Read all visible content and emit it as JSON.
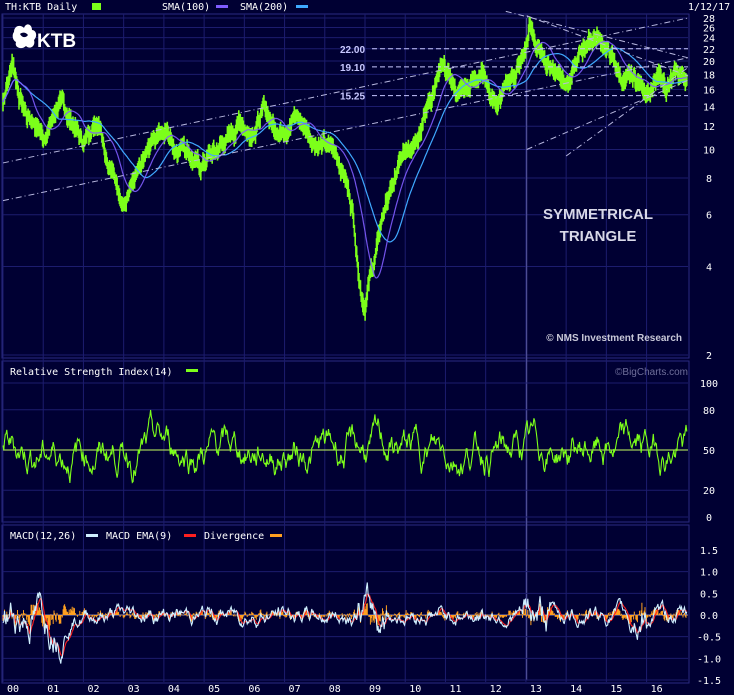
{
  "colors": {
    "background": "#000033",
    "text": "#ffffff",
    "grid": "#1c1c6e",
    "price": "#7cff1a",
    "sma100": "#7f5cff",
    "sma200": "#3fa9ff",
    "macd": "#cfefff",
    "macd_ema": "#ff2020",
    "divergence": "#ffa020",
    "trendline": "#b8b8e0",
    "level": "#c8c8ff",
    "watermark": "#6e6e9a"
  },
  "header": {
    "ticker": "TH:KTB Daily",
    "sma100": "SMA(100)",
    "sma200": "SMA(200)",
    "date": "1/12/17"
  },
  "logo_text": "KTB",
  "annotation": {
    "line1": "SYMMETRICAL",
    "line2": "TRIANGLE"
  },
  "copyright": "© NMS Investment Research",
  "levels": [
    {
      "label": "22.00",
      "value": 22
    },
    {
      "label": "19.10",
      "value": 19.1
    },
    {
      "label": "15.25",
      "value": 15.25
    }
  ],
  "rsi_title": "Relative Strength Index(14)",
  "bigcharts": "©BigCharts.com",
  "macd_legend": {
    "macd": "MACD(12,26)",
    "ema": "MACD EMA(9)",
    "divergence": "Divergence"
  },
  "chart_data": [
    {
      "type": "line",
      "name": "price",
      "scale": "log",
      "ylim": [
        2,
        28
      ],
      "xlim": [
        2000,
        2017.03
      ],
      "yticks": [
        "28",
        "26",
        "24",
        "22",
        "20",
        "18",
        "16",
        "14",
        "12",
        "10",
        "8",
        "6",
        "4",
        "2"
      ],
      "x": [
        2000.0,
        2000.1,
        2000.25,
        2000.4,
        2000.6,
        2000.8,
        2001.0,
        2001.2,
        2001.4,
        2001.6,
        2001.8,
        2002.0,
        2002.2,
        2002.4,
        2002.6,
        2002.8,
        2003.0,
        2003.2,
        2003.4,
        2003.5,
        2003.7,
        2003.9,
        2004.1,
        2004.3,
        2004.5,
        2004.7,
        2004.9,
        2005.1,
        2005.3,
        2005.5,
        2005.7,
        2005.9,
        2006.1,
        2006.3,
        2006.5,
        2006.7,
        2006.9,
        2007.1,
        2007.3,
        2007.5,
        2007.7,
        2007.9,
        2008.1,
        2008.3,
        2008.5,
        2008.7,
        2008.8,
        2008.9,
        2009.0,
        2009.1,
        2009.25,
        2009.5,
        2009.7,
        2009.9,
        2010.1,
        2010.3,
        2010.5,
        2010.7,
        2010.9,
        2011.1,
        2011.3,
        2011.5,
        2011.7,
        2011.9,
        2012.1,
        2012.3,
        2012.5,
        2012.7,
        2012.9,
        2013.0,
        2013.1,
        2013.3,
        2013.5,
        2013.7,
        2013.9,
        2014.1,
        2014.3,
        2014.5,
        2014.7,
        2014.9,
        2015.1,
        2015.3,
        2015.5,
        2015.7,
        2015.9,
        2016.1,
        2016.3,
        2016.5,
        2016.7,
        2016.9,
        2017.0
      ],
      "y": [
        14.5,
        17.0,
        20.0,
        15.5,
        13.0,
        12.5,
        11.0,
        12.5,
        14.5,
        13.0,
        12.0,
        10.5,
        12.0,
        13.0,
        9.5,
        8.0,
        6.6,
        7.3,
        8.2,
        8.8,
        10.5,
        11.8,
        11.5,
        10.0,
        10.8,
        9.5,
        8.6,
        9.5,
        9.8,
        10.6,
        11.2,
        12.8,
        11.5,
        12.3,
        13.8,
        12.2,
        11.8,
        12.5,
        13.2,
        12.0,
        11.0,
        10.5,
        10.2,
        9.5,
        8.2,
        6.2,
        4.5,
        3.4,
        3.0,
        3.6,
        4.3,
        6.5,
        7.5,
        9.0,
        10.5,
        11.8,
        13.5,
        16.0,
        18.5,
        17.5,
        15.5,
        16.5,
        17.5,
        19.5,
        15.8,
        14.2,
        16.0,
        18.0,
        20.0,
        22.0,
        26.0,
        22.0,
        20.0,
        19.0,
        18.0,
        17.5,
        20.0,
        23.0,
        24.5,
        23.5,
        21.0,
        18.0,
        16.8,
        17.2,
        16.5,
        16.0,
        17.2,
        16.5,
        17.5,
        17.8,
        17.5
      ]
    },
    {
      "type": "line",
      "name": "Relative Strength Index(14)",
      "ylim": [
        0,
        100
      ],
      "yticks": [
        "100",
        "80",
        "50",
        "20",
        "0"
      ],
      "generated": "oscillating series, centered at 50, range ~20-88"
    },
    {
      "type": "line",
      "name": "MACD",
      "ylim": [
        -1.5,
        1.5
      ],
      "yticks": [
        "1.5",
        "1.0",
        "0.5",
        "0.0",
        "-0.5",
        "-1.0",
        "-1.5"
      ],
      "xticks": [
        "00",
        "01",
        "02",
        "03",
        "04",
        "05",
        "06",
        "07",
        "08",
        "09",
        "10",
        "11",
        "12",
        "13",
        "14",
        "15",
        "16"
      ]
    }
  ]
}
